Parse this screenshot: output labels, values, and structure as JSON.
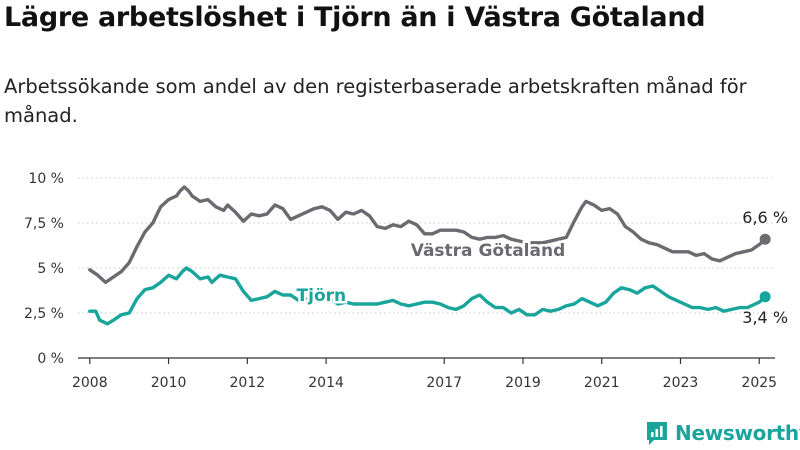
{
  "header": {
    "title": "Lägre arbetslöshet i Tjörn än i Västra Götaland",
    "subtitle": "Arbetssökande som andel av den registerbaserade arbetskraften månad för månad."
  },
  "brand": {
    "name": "Newsworthy",
    "icon": "newsworthy-logo-icon",
    "color": "#1aa59c"
  },
  "chart_data": {
    "type": "line",
    "title": "Lägre arbetslöshet i Tjörn än i Västra Götaland",
    "subtitle": "Arbetssökande som andel av den registerbaserade arbetskraften månad för månad.",
    "xlim": [
      2007.7,
      2025.4
    ],
    "ylim": [
      0,
      10
    ],
    "grid": true,
    "x_ticks": [
      2008,
      2010,
      2012,
      2014,
      2017,
      2019,
      2021,
      2023,
      2025
    ],
    "x_tick_labels": [
      "2008",
      "2010",
      "2012",
      "2014",
      "2017",
      "2019",
      "2021",
      "2023",
      "2025"
    ],
    "y_ticks": [
      0,
      2.5,
      5,
      7.5,
      10
    ],
    "y_tick_labels": [
      "0 %",
      "2,5 %",
      "5 %",
      "7,5 %",
      "10 %"
    ],
    "series": [
      {
        "name": "Västra Götaland",
        "color": "#6b6a70",
        "end_label": "6,6 %",
        "label_x": 2016.15,
        "label_y": 6.0,
        "points": [
          [
            2008.0,
            4.9
          ],
          [
            2008.2,
            4.6
          ],
          [
            2008.4,
            4.2
          ],
          [
            2008.6,
            4.5
          ],
          [
            2008.8,
            4.8
          ],
          [
            2009.0,
            5.3
          ],
          [
            2009.2,
            6.2
          ],
          [
            2009.4,
            7.0
          ],
          [
            2009.6,
            7.5
          ],
          [
            2009.8,
            8.4
          ],
          [
            2010.0,
            8.8
          ],
          [
            2010.2,
            9.0
          ],
          [
            2010.3,
            9.3
          ],
          [
            2010.4,
            9.5
          ],
          [
            2010.5,
            9.3
          ],
          [
            2010.6,
            9.0
          ],
          [
            2010.8,
            8.7
          ],
          [
            2011.0,
            8.8
          ],
          [
            2011.2,
            8.4
          ],
          [
            2011.4,
            8.2
          ],
          [
            2011.5,
            8.5
          ],
          [
            2011.7,
            8.1
          ],
          [
            2011.9,
            7.6
          ],
          [
            2012.1,
            8.0
          ],
          [
            2012.3,
            7.9
          ],
          [
            2012.5,
            8.0
          ],
          [
            2012.7,
            8.5
          ],
          [
            2012.9,
            8.3
          ],
          [
            2013.1,
            7.7
          ],
          [
            2013.3,
            7.9
          ],
          [
            2013.5,
            8.1
          ],
          [
            2013.7,
            8.3
          ],
          [
            2013.9,
            8.4
          ],
          [
            2014.1,
            8.2
          ],
          [
            2014.3,
            7.7
          ],
          [
            2014.5,
            8.1
          ],
          [
            2014.7,
            8.0
          ],
          [
            2014.9,
            8.2
          ],
          [
            2015.1,
            7.9
          ],
          [
            2015.3,
            7.3
          ],
          [
            2015.5,
            7.2
          ],
          [
            2015.7,
            7.4
          ],
          [
            2015.9,
            7.3
          ],
          [
            2016.1,
            7.6
          ],
          [
            2016.3,
            7.4
          ],
          [
            2016.5,
            6.9
          ],
          [
            2016.7,
            6.9
          ],
          [
            2016.9,
            7.1
          ],
          [
            2017.1,
            7.1
          ],
          [
            2017.3,
            7.1
          ],
          [
            2017.5,
            7.0
          ],
          [
            2017.7,
            6.7
          ],
          [
            2017.9,
            6.6
          ],
          [
            2018.1,
            6.7
          ],
          [
            2018.3,
            6.7
          ],
          [
            2018.5,
            6.8
          ],
          [
            2018.7,
            6.6
          ],
          [
            2018.9,
            6.5
          ],
          [
            2019.1,
            6.4
          ],
          [
            2019.3,
            6.4
          ],
          [
            2019.5,
            6.4
          ],
          [
            2019.7,
            6.5
          ],
          [
            2019.9,
            6.6
          ],
          [
            2020.1,
            6.7
          ],
          [
            2020.3,
            7.6
          ],
          [
            2020.5,
            8.4
          ],
          [
            2020.6,
            8.7
          ],
          [
            2020.8,
            8.5
          ],
          [
            2021.0,
            8.2
          ],
          [
            2021.2,
            8.3
          ],
          [
            2021.4,
            8.0
          ],
          [
            2021.6,
            7.3
          ],
          [
            2021.8,
            7.0
          ],
          [
            2022.0,
            6.6
          ],
          [
            2022.2,
            6.4
          ],
          [
            2022.4,
            6.3
          ],
          [
            2022.6,
            6.1
          ],
          [
            2022.8,
            5.9
          ],
          [
            2023.0,
            5.9
          ],
          [
            2023.2,
            5.9
          ],
          [
            2023.4,
            5.7
          ],
          [
            2023.6,
            5.8
          ],
          [
            2023.8,
            5.5
          ],
          [
            2024.0,
            5.4
          ],
          [
            2024.2,
            5.6
          ],
          [
            2024.4,
            5.8
          ],
          [
            2024.6,
            5.9
          ],
          [
            2024.8,
            6.0
          ],
          [
            2025.0,
            6.3
          ],
          [
            2025.15,
            6.6
          ]
        ]
      },
      {
        "name": "Tjörn",
        "color": "#1aa59c",
        "end_label": "3,4 %",
        "label_x": 2013.25,
        "label_y": 3.5,
        "points": [
          [
            2008.0,
            2.6
          ],
          [
            2008.15,
            2.6
          ],
          [
            2008.25,
            2.1
          ],
          [
            2008.45,
            1.9
          ],
          [
            2008.6,
            2.1
          ],
          [
            2008.8,
            2.4
          ],
          [
            2009.0,
            2.5
          ],
          [
            2009.2,
            3.3
          ],
          [
            2009.4,
            3.8
          ],
          [
            2009.6,
            3.9
          ],
          [
            2009.8,
            4.2
          ],
          [
            2010.0,
            4.6
          ],
          [
            2010.2,
            4.4
          ],
          [
            2010.35,
            4.8
          ],
          [
            2010.45,
            5.0
          ],
          [
            2010.6,
            4.8
          ],
          [
            2010.8,
            4.4
          ],
          [
            2011.0,
            4.5
          ],
          [
            2011.1,
            4.2
          ],
          [
            2011.3,
            4.6
          ],
          [
            2011.5,
            4.5
          ],
          [
            2011.7,
            4.4
          ],
          [
            2011.9,
            3.7
          ],
          [
            2012.1,
            3.2
          ],
          [
            2012.3,
            3.3
          ],
          [
            2012.5,
            3.4
          ],
          [
            2012.7,
            3.7
          ],
          [
            2012.9,
            3.5
          ],
          [
            2013.1,
            3.5
          ],
          [
            2013.3,
            3.2
          ],
          [
            2013.5,
            3.3
          ],
          [
            2013.7,
            3.2
          ],
          [
            2013.9,
            3.4
          ],
          [
            2014.1,
            3.3
          ],
          [
            2014.3,
            3.0
          ],
          [
            2014.5,
            3.1
          ],
          [
            2014.7,
            3.0
          ],
          [
            2014.9,
            3.0
          ],
          [
            2015.1,
            3.0
          ],
          [
            2015.3,
            3.0
          ],
          [
            2015.5,
            3.1
          ],
          [
            2015.7,
            3.2
          ],
          [
            2015.9,
            3.0
          ],
          [
            2016.1,
            2.9
          ],
          [
            2016.3,
            3.0
          ],
          [
            2016.5,
            3.1
          ],
          [
            2016.7,
            3.1
          ],
          [
            2016.9,
            3.0
          ],
          [
            2017.1,
            2.8
          ],
          [
            2017.3,
            2.7
          ],
          [
            2017.5,
            2.9
          ],
          [
            2017.7,
            3.3
          ],
          [
            2017.9,
            3.5
          ],
          [
            2018.1,
            3.1
          ],
          [
            2018.3,
            2.8
          ],
          [
            2018.5,
            2.8
          ],
          [
            2018.7,
            2.5
          ],
          [
            2018.9,
            2.7
          ],
          [
            2019.1,
            2.4
          ],
          [
            2019.3,
            2.4
          ],
          [
            2019.5,
            2.7
          ],
          [
            2019.7,
            2.6
          ],
          [
            2019.9,
            2.7
          ],
          [
            2020.1,
            2.9
          ],
          [
            2020.3,
            3.0
          ],
          [
            2020.5,
            3.3
          ],
          [
            2020.7,
            3.1
          ],
          [
            2020.9,
            2.9
          ],
          [
            2021.1,
            3.1
          ],
          [
            2021.3,
            3.6
          ],
          [
            2021.5,
            3.9
          ],
          [
            2021.7,
            3.8
          ],
          [
            2021.9,
            3.6
          ],
          [
            2022.1,
            3.9
          ],
          [
            2022.3,
            4.0
          ],
          [
            2022.5,
            3.7
          ],
          [
            2022.7,
            3.4
          ],
          [
            2022.9,
            3.2
          ],
          [
            2023.1,
            3.0
          ],
          [
            2023.3,
            2.8
          ],
          [
            2023.5,
            2.8
          ],
          [
            2023.7,
            2.7
          ],
          [
            2023.9,
            2.8
          ],
          [
            2024.1,
            2.6
          ],
          [
            2024.3,
            2.7
          ],
          [
            2024.5,
            2.8
          ],
          [
            2024.7,
            2.8
          ],
          [
            2024.9,
            3.0
          ],
          [
            2025.0,
            3.1
          ],
          [
            2025.15,
            3.4
          ]
        ]
      }
    ]
  }
}
